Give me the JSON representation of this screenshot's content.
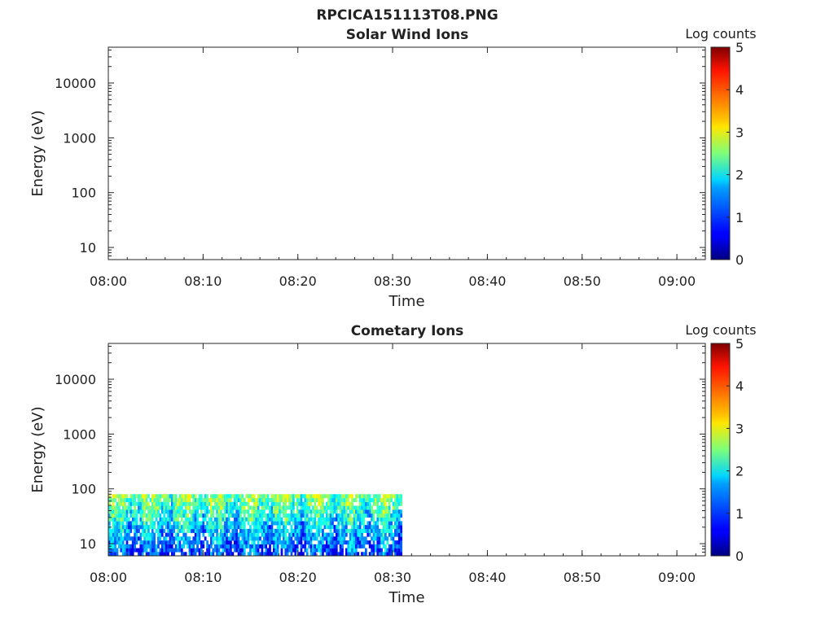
{
  "figure_title": "RPCICA151113T08.PNG",
  "colorbar": {
    "label": "Log counts",
    "ticks": [
      "0",
      "1",
      "2",
      "3",
      "4",
      "5"
    ],
    "range": [
      0,
      5
    ],
    "colormap": "jet"
  },
  "chart_data": [
    {
      "type": "heatmap",
      "title": "Solar Wind Ions",
      "xlabel": "Time",
      "ylabel": "Energy (eV)",
      "x_ticks": [
        "08:00",
        "08:10",
        "08:20",
        "08:30",
        "08:40",
        "08:50",
        "09:00"
      ],
      "y_ticks": [
        "10",
        "100",
        "1000",
        "10000"
      ],
      "y_scale": "log",
      "ylim": [
        6,
        45000
      ],
      "xlim": [
        "08:00",
        "09:03"
      ],
      "data_extent": null
    },
    {
      "type": "heatmap",
      "title": "Cometary Ions",
      "xlabel": "Time",
      "ylabel": "Energy (eV)",
      "x_ticks": [
        "08:00",
        "08:10",
        "08:20",
        "08:30",
        "08:40",
        "08:50",
        "09:00"
      ],
      "y_ticks": [
        "10",
        "100",
        "1000",
        "10000"
      ],
      "y_scale": "log",
      "ylim": [
        6,
        45000
      ],
      "xlim": [
        "08:00",
        "09:03"
      ],
      "data_extent": {
        "time": [
          "08:00",
          "08:31"
        ],
        "energy_ev": [
          6,
          80
        ],
        "log_counts_range": [
          0.5,
          3.2
        ]
      }
    }
  ]
}
